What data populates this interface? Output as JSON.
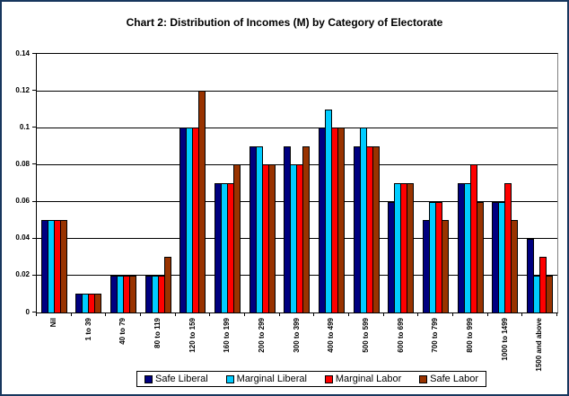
{
  "title": "Chart 2: Distribution of Incomes (M) by Category of Electorate",
  "colors": {
    "frame_border": "#17375E",
    "grid": "#000000",
    "plot_right_border": "#808080",
    "safe_liberal": "#000080",
    "marginal_liberal": "#00CCFF",
    "marginal_labor": "#FF0000",
    "safe_labor": "#993300"
  },
  "chart_data": {
    "type": "bar",
    "title": "Chart 2: Distribution of Incomes (M) by Category of Electorate",
    "xlabel": "",
    "ylabel": "",
    "ylim": [
      0,
      0.14
    ],
    "grid": true,
    "legend_position": "bottom",
    "y_tick_labels": [
      "0",
      "0.02",
      "0.04",
      "0.06",
      "0.08",
      "0.1",
      "0.12",
      "0.14"
    ],
    "y_tick_values": [
      0,
      0.02,
      0.04,
      0.06,
      0.08,
      0.1,
      0.12,
      0.14
    ],
    "categories": [
      "Nil",
      "1 to 39",
      "40 to 79",
      "80 to 119",
      "120 to 159",
      "160 to 199",
      "200 to 299",
      "300 to 399",
      "400 to 499",
      "500 to 599",
      "600 to 699",
      "700 to 799",
      "800 to 999",
      "1000 to 1499",
      "1500 and above"
    ],
    "series": [
      {
        "name": "Safe Liberal",
        "color": "#000080",
        "values": [
          0.05,
          0.01,
          0.02,
          0.02,
          0.1,
          0.07,
          0.09,
          0.09,
          0.1,
          0.09,
          0.06,
          0.05,
          0.07,
          0.06,
          0.04
        ]
      },
      {
        "name": "Marginal Liberal",
        "color": "#00CCFF",
        "values": [
          0.05,
          0.01,
          0.02,
          0.02,
          0.1,
          0.07,
          0.09,
          0.08,
          0.11,
          0.1,
          0.07,
          0.06,
          0.07,
          0.06,
          0.02
        ]
      },
      {
        "name": "Marginal Labor",
        "color": "#FF0000",
        "values": [
          0.05,
          0.01,
          0.02,
          0.02,
          0.1,
          0.07,
          0.08,
          0.08,
          0.1,
          0.09,
          0.07,
          0.06,
          0.08,
          0.07,
          0.03
        ]
      },
      {
        "name": "Safe Labor",
        "color": "#993300",
        "values": [
          0.05,
          0.01,
          0.02,
          0.03,
          0.12,
          0.08,
          0.08,
          0.09,
          0.1,
          0.09,
          0.07,
          0.05,
          0.06,
          0.05,
          0.02
        ]
      }
    ]
  }
}
